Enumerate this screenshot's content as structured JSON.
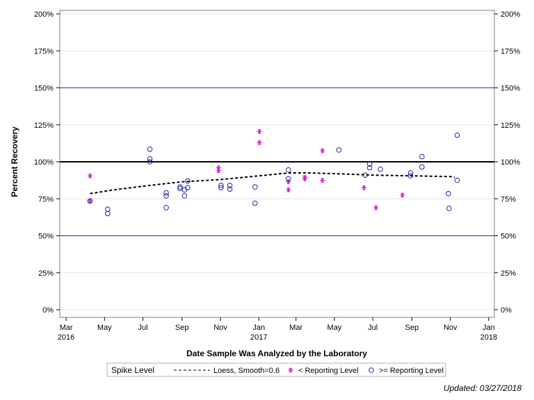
{
  "chart_data": {
    "type": "scatter",
    "title": "",
    "xlabel": "Date Sample Was Analyzed by the Laboratory",
    "ylabel": "Percent Recovery",
    "ylim": [
      0,
      200
    ],
    "xlim": [
      "2016-02-20",
      "2018-01-10"
    ],
    "y_ticks": [
      {
        "value": 0,
        "label": "0%"
      },
      {
        "value": 25,
        "label": "25%"
      },
      {
        "value": 50,
        "label": "50%"
      },
      {
        "value": 75,
        "label": "75%"
      },
      {
        "value": 100,
        "label": "100%"
      },
      {
        "value": 125,
        "label": "125%"
      },
      {
        "value": 150,
        "label": "150%"
      },
      {
        "value": 175,
        "label": "175%"
      },
      {
        "value": 200,
        "label": "200%"
      }
    ],
    "x_ticks": [
      {
        "date": "2016-03-01",
        "label": "Mar",
        "year": "2016"
      },
      {
        "date": "2016-05-01",
        "label": "May",
        "year": ""
      },
      {
        "date": "2016-07-01",
        "label": "Jul",
        "year": ""
      },
      {
        "date": "2016-09-01",
        "label": "Sep",
        "year": ""
      },
      {
        "date": "2016-11-01",
        "label": "Nov",
        "year": ""
      },
      {
        "date": "2017-01-01",
        "label": "Jan",
        "year": "2017"
      },
      {
        "date": "2017-03-01",
        "label": "Mar",
        "year": ""
      },
      {
        "date": "2017-05-01",
        "label": "May",
        "year": ""
      },
      {
        "date": "2017-07-01",
        "label": "Jul",
        "year": ""
      },
      {
        "date": "2017-09-01",
        "label": "Sep",
        "year": ""
      },
      {
        "date": "2017-11-01",
        "label": "Nov",
        "year": ""
      },
      {
        "date": "2018-01-01",
        "label": "Jan",
        "year": "2018"
      }
    ],
    "reference_lines": [
      {
        "value": 150,
        "color": "#2b2b9c",
        "width": 1
      },
      {
        "value": 100,
        "color": "#000000",
        "width": 2
      },
      {
        "value": 50,
        "color": "#2b2b9c",
        "width": 1
      }
    ],
    "grid": true,
    "legend_position": "bottom",
    "legend_title": "Spike Level",
    "series": [
      {
        "name": "Loess, Smooth=0.6",
        "type": "line",
        "style": "dashed",
        "color": "#000000",
        "points": [
          {
            "x": "2016-04-08",
            "y": 78.5
          },
          {
            "x": "2016-05-15",
            "y": 81
          },
          {
            "x": "2016-07-01",
            "y": 83.5
          },
          {
            "x": "2016-09-01",
            "y": 86.5
          },
          {
            "x": "2016-11-01",
            "y": 88
          },
          {
            "x": "2017-01-01",
            "y": 90.5
          },
          {
            "x": "2017-02-18",
            "y": 92.5
          },
          {
            "x": "2017-03-20",
            "y": 92.5
          },
          {
            "x": "2017-05-01",
            "y": 92
          },
          {
            "x": "2017-07-01",
            "y": 91
          },
          {
            "x": "2017-09-01",
            "y": 90.5
          },
          {
            "x": "2017-11-01",
            "y": 90
          },
          {
            "x": "2017-11-08",
            "y": 89.5
          }
        ]
      },
      {
        "name": "< Reporting Level",
        "type": "scatter",
        "marker": "asterisk",
        "color": "#d21fd2",
        "points": [
          {
            "x": "2016-04-08",
            "y": 90.5
          },
          {
            "x": "2016-04-08",
            "y": 73.5
          },
          {
            "x": "2016-10-29",
            "y": 96
          },
          {
            "x": "2016-10-29",
            "y": 94
          },
          {
            "x": "2017-01-02",
            "y": 120.5
          },
          {
            "x": "2017-01-02",
            "y": 113
          },
          {
            "x": "2017-02-17",
            "y": 86.5
          },
          {
            "x": "2017-02-17",
            "y": 81
          },
          {
            "x": "2017-03-15",
            "y": 88.5
          },
          {
            "x": "2017-03-15",
            "y": 89.5
          },
          {
            "x": "2017-04-12",
            "y": 107.5
          },
          {
            "x": "2017-04-12",
            "y": 87.5
          },
          {
            "x": "2017-06-17",
            "y": 82.5
          },
          {
            "x": "2017-07-06",
            "y": 69
          },
          {
            "x": "2017-08-17",
            "y": 77.5
          }
        ]
      },
      {
        "name": ">= Reporting Level",
        "type": "scatter",
        "marker": "circle",
        "color": "#2020a8",
        "points": [
          {
            "x": "2016-04-08",
            "y": 73.5
          },
          {
            "x": "2016-05-06",
            "y": 68
          },
          {
            "x": "2016-05-06",
            "y": 65
          },
          {
            "x": "2016-07-12",
            "y": 108.5
          },
          {
            "x": "2016-07-12",
            "y": 102
          },
          {
            "x": "2016-07-12",
            "y": 100
          },
          {
            "x": "2016-08-07",
            "y": 79
          },
          {
            "x": "2016-08-07",
            "y": 77
          },
          {
            "x": "2016-08-07",
            "y": 69
          },
          {
            "x": "2016-08-29",
            "y": 83
          },
          {
            "x": "2016-08-29",
            "y": 82
          },
          {
            "x": "2016-09-05",
            "y": 81
          },
          {
            "x": "2016-09-05",
            "y": 77
          },
          {
            "x": "2016-09-10",
            "y": 87
          },
          {
            "x": "2016-09-10",
            "y": 82.5
          },
          {
            "x": "2016-11-02",
            "y": 84
          },
          {
            "x": "2016-11-02",
            "y": 82.5
          },
          {
            "x": "2016-11-16",
            "y": 84
          },
          {
            "x": "2016-11-16",
            "y": 81.5
          },
          {
            "x": "2016-12-26",
            "y": 83
          },
          {
            "x": "2016-12-26",
            "y": 72
          },
          {
            "x": "2017-02-17",
            "y": 94.5
          },
          {
            "x": "2017-02-17",
            "y": 88.5
          },
          {
            "x": "2017-05-08",
            "y": 108
          },
          {
            "x": "2017-06-19",
            "y": 91
          },
          {
            "x": "2017-06-26",
            "y": 98.5
          },
          {
            "x": "2017-06-26",
            "y": 96
          },
          {
            "x": "2017-07-13",
            "y": 95
          },
          {
            "x": "2017-08-30",
            "y": 92.5
          },
          {
            "x": "2017-08-30",
            "y": 90.5
          },
          {
            "x": "2017-09-17",
            "y": 103.5
          },
          {
            "x": "2017-09-17",
            "y": 96.5
          },
          {
            "x": "2017-10-29",
            "y": 78.5
          },
          {
            "x": "2017-10-30",
            "y": 68.5
          },
          {
            "x": "2017-11-12",
            "y": 118
          },
          {
            "x": "2017-11-12",
            "y": 87.5
          }
        ]
      }
    ]
  },
  "footnote": "Updated: 03/27/2018"
}
